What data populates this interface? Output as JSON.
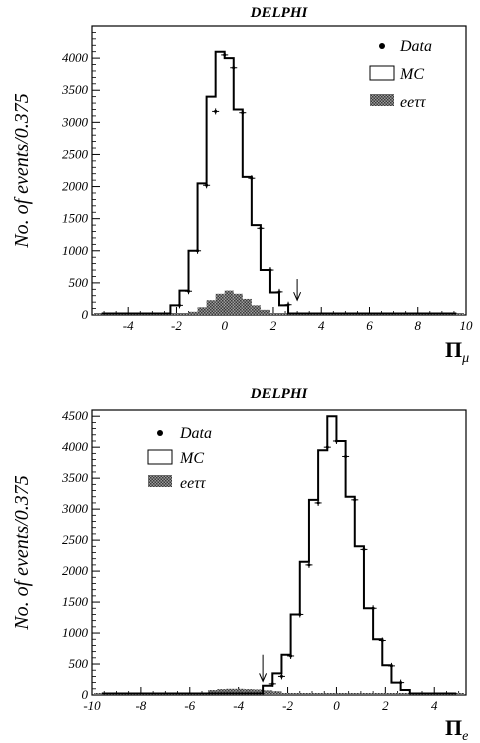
{
  "chart_data": [
    {
      "type": "histogram",
      "title": "DELPHI",
      "ylabel": "No. of events/0.375",
      "xlabel": "Π",
      "xlabel_sub": "μ",
      "xlim": [
        -5.5,
        10
      ],
      "ylim": [
        0,
        4500
      ],
      "xticks": [
        -4,
        -2,
        0,
        2,
        4,
        6,
        8,
        10
      ],
      "yticks": [
        0,
        500,
        1000,
        1500,
        2000,
        2500,
        3000,
        3500,
        4000
      ],
      "bin_width": 0.375,
      "legend": {
        "placement": "top-right",
        "entries": [
          "Data",
          "MC",
          "eeττ"
        ]
      },
      "cut_arrow_x": 3.0,
      "series": [
        {
          "name": "MC",
          "bin_start": -2.25,
          "values": [
            150,
            380,
            1000,
            2050,
            3400,
            4100,
            4000,
            3200,
            2150,
            1400,
            700,
            350,
            150
          ]
        },
        {
          "name": "eeττ",
          "bin_start": -1.5,
          "values": [
            50,
            120,
            230,
            330,
            380,
            330,
            250,
            150,
            80
          ]
        },
        {
          "name": "Data",
          "points": [
            [
              -1.875,
              150
            ],
            [
              -1.5,
              370
            ],
            [
              -1.125,
              1000
            ],
            [
              -0.75,
              2020
            ],
            [
              -0.375,
              3170
            ],
            [
              0.0,
              4050
            ],
            [
              0.375,
              3850
            ],
            [
              0.75,
              3150
            ],
            [
              1.125,
              2130
            ],
            [
              1.5,
              1350
            ],
            [
              1.875,
              700
            ],
            [
              2.25,
              360
            ],
            [
              2.625,
              160
            ]
          ]
        }
      ]
    },
    {
      "type": "histogram",
      "title": "DELPHI",
      "ylabel": "No. of events/0.375",
      "xlabel": "Π",
      "xlabel_sub": "e",
      "xlim": [
        -10,
        5.3
      ],
      "ylim": [
        0,
        4600
      ],
      "xticks": [
        -10,
        -8,
        -6,
        -4,
        -2,
        0,
        2,
        4
      ],
      "yticks": [
        0,
        500,
        1000,
        1500,
        2000,
        2500,
        3000,
        3500,
        4000,
        4500
      ],
      "bin_width": 0.375,
      "legend": {
        "placement": "top-left",
        "entries": [
          "Data",
          "MC",
          "eeττ"
        ]
      },
      "cut_arrow_x": -3.0,
      "series": [
        {
          "name": "MC",
          "bin_start": -3.0,
          "values": [
            150,
            350,
            650,
            1300,
            2150,
            3150,
            3950,
            4500,
            4100,
            3200,
            2400,
            1400,
            900,
            480,
            200,
            80
          ]
        },
        {
          "name": "eeττ",
          "bin_start": -5.25,
          "values": [
            80,
            95,
            100,
            100,
            95,
            90,
            75,
            60
          ]
        },
        {
          "name": "Data",
          "points": [
            [
              -2.625,
              180
            ],
            [
              -2.25,
              300
            ],
            [
              -1.875,
              630
            ],
            [
              -1.5,
              1300
            ],
            [
              -1.125,
              2100
            ],
            [
              -0.75,
              3100
            ],
            [
              -0.375,
              4000
            ],
            [
              0.0,
              4100
            ],
            [
              0.375,
              3850
            ],
            [
              0.75,
              3150
            ],
            [
              1.125,
              2350
            ],
            [
              1.5,
              1400
            ],
            [
              1.875,
              880
            ],
            [
              2.25,
              470
            ],
            [
              2.625,
              200
            ]
          ]
        }
      ]
    }
  ]
}
